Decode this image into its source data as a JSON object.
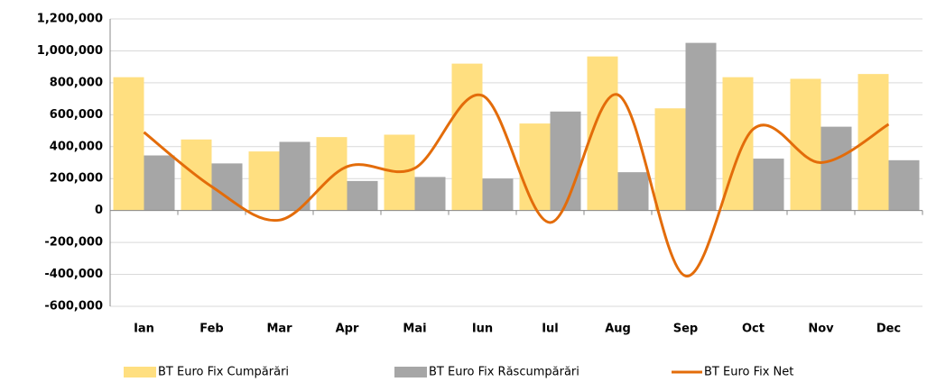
{
  "chart_data": {
    "type": "bar_line",
    "categories": [
      "Ian",
      "Feb",
      "Mar",
      "Apr",
      "Mai",
      "Iun",
      "Iul",
      "Aug",
      "Sep",
      "Oct",
      "Nov",
      "Dec"
    ],
    "series": [
      {
        "name": "BT Euro Fix Cumpărări",
        "type": "bar",
        "color": "#ffdf80",
        "values": [
          835000,
          445000,
          370000,
          460000,
          475000,
          920000,
          545000,
          965000,
          640000,
          835000,
          825000,
          855000
        ]
      },
      {
        "name": "BT Euro Fix Răscumpărări",
        "type": "bar",
        "color": "#a6a6a6",
        "values": [
          345000,
          295000,
          430000,
          185000,
          210000,
          200000,
          620000,
          240000,
          1050000,
          325000,
          525000,
          315000
        ]
      },
      {
        "name": "BT Euro Fix Net",
        "type": "line",
        "color": "#e36c0a",
        "smooth": true,
        "values": [
          490000,
          150000,
          -60000,
          275000,
          265000,
          720000,
          -75000,
          725000,
          -410000,
          510000,
          300000,
          540000
        ]
      }
    ],
    "ylim": [
      -600000,
      1200000
    ],
    "yticks": [
      {
        "value": -600000,
        "label": "-600,000"
      },
      {
        "value": -400000,
        "label": "-400,000"
      },
      {
        "value": -200000,
        "label": "-200,000"
      },
      0,
      {
        "value": 200000,
        "label": "200,000"
      },
      {
        "value": 400000,
        "label": "400,000"
      },
      {
        "value": 600000,
        "label": "600,000"
      },
      {
        "value": 800000,
        "label": "800,000"
      },
      {
        "value": 1000000,
        "label": "1,000,000"
      },
      {
        "value": 1200000,
        "label": "1,200,000"
      }
    ],
    "grid": true,
    "negative_tick_color": "#ff0000",
    "legend": "bottom"
  }
}
